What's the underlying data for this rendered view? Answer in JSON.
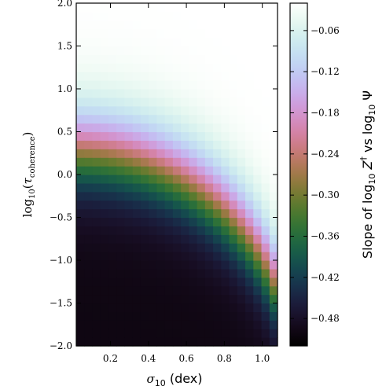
{
  "chart_data": {
    "type": "heatmap",
    "x_axis": {
      "label_symbol": "σ",
      "label_sub": "10",
      "label_rest": " (dex)",
      "range": [
        0.02,
        1.08
      ],
      "ticks": [
        0.2,
        0.4,
        0.6,
        0.8,
        1.0
      ],
      "tick_labels": [
        "0.2",
        "0.4",
        "0.6",
        "0.8",
        "1.0"
      ]
    },
    "y_axis": {
      "label_log": "log",
      "label_log_sub": "10",
      "label_arg": "τ",
      "label_arg_sub": "coherence",
      "range": [
        -2.0,
        2.0
      ],
      "ticks": [
        -2.0,
        -1.5,
        -1.0,
        -0.5,
        0.0,
        0.5,
        1.0,
        1.5,
        2.0
      ],
      "tick_labels": [
        "−2.0",
        "−1.5",
        "−1.0",
        "−0.5",
        "0.0",
        "0.5",
        "1.0",
        "1.5",
        "2.0"
      ]
    },
    "colorbar": {
      "label_pre": "Slope of log",
      "label_sub1": "10",
      "label_mid": " Z",
      "label_sup": "†",
      "label_mid2": " vs log",
      "label_sub2": "10",
      "label_end": " Ψ",
      "range": [
        -0.52,
        -0.02
      ],
      "ticks": [
        -0.06,
        -0.12,
        -0.18,
        -0.24,
        -0.3,
        -0.36,
        -0.42,
        -0.48
      ],
      "tick_labels": [
        "−0.06",
        "−0.12",
        "−0.18",
        "−0.24",
        "−0.30",
        "−0.36",
        "−0.42",
        "−0.48"
      ],
      "colormap": "cubehelix"
    },
    "grid": {
      "nx": 25,
      "ny": 40,
      "model": "slope = -0.5 + 0.48 / (1 + exp(-(log_tau - c(sigma)) / w)), c(sigma) = -2.2 + 2.5*sqrt(1 - (sigma/1.15)^2)"
    },
    "legend": "none"
  }
}
